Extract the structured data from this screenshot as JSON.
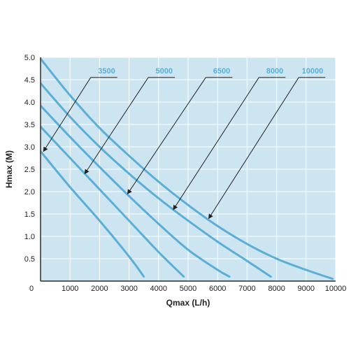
{
  "chart_data": {
    "type": "line",
    "xlabel": "Qmax (L/h)",
    "ylabel": "Hmax (M)",
    "xlim": [
      0,
      10000
    ],
    "ylim": [
      0,
      5.0
    ],
    "x_ticks": [
      "0",
      "1000",
      "2000",
      "3000",
      "4000",
      "5000",
      "6000",
      "7000",
      "8000",
      "9000",
      "10000"
    ],
    "y_ticks": [
      "0.5",
      "1.0",
      "1.5",
      "2.0",
      "2.5",
      "3.0",
      "3.5",
      "4.0",
      "4.5",
      "5.0"
    ],
    "grid": true,
    "background_color": "#cde5f1",
    "line_color": "#5aaed8",
    "arrow_color": "#222222",
    "series": [
      {
        "name": "3500",
        "points": [
          [
            0,
            2.9
          ],
          [
            1000,
            2.1
          ],
          [
            2000,
            1.35
          ],
          [
            3000,
            0.55
          ],
          [
            3500,
            0.1
          ]
        ]
      },
      {
        "name": "5000",
        "points": [
          [
            0,
            3.45
          ],
          [
            1000,
            2.75
          ],
          [
            2000,
            2.05
          ],
          [
            3000,
            1.35
          ],
          [
            4000,
            0.65
          ],
          [
            4850,
            0.1
          ]
        ]
      },
      {
        "name": "6500",
        "points": [
          [
            0,
            3.92
          ],
          [
            1000,
            3.22
          ],
          [
            2000,
            2.55
          ],
          [
            3000,
            1.9
          ],
          [
            4000,
            1.28
          ],
          [
            5000,
            0.7
          ],
          [
            6000,
            0.25
          ],
          [
            6400,
            0.1
          ]
        ]
      },
      {
        "name": "8000",
        "points": [
          [
            0,
            4.42
          ],
          [
            1000,
            3.67
          ],
          [
            2000,
            3.0
          ],
          [
            3000,
            2.4
          ],
          [
            4000,
            1.85
          ],
          [
            5000,
            1.35
          ],
          [
            6000,
            0.88
          ],
          [
            7000,
            0.45
          ],
          [
            7800,
            0.1
          ]
        ]
      },
      {
        "name": "10000",
        "points": [
          [
            0,
            4.97
          ],
          [
            1000,
            4.15
          ],
          [
            2000,
            3.42
          ],
          [
            3000,
            2.8
          ],
          [
            4000,
            2.22
          ],
          [
            5000,
            1.7
          ],
          [
            6000,
            1.23
          ],
          [
            7000,
            0.83
          ],
          [
            8000,
            0.5
          ],
          [
            9000,
            0.25
          ],
          [
            9900,
            0.05
          ]
        ]
      }
    ],
    "annotations": [
      {
        "text": "3500",
        "label_x": 2600,
        "label_y": 4.55,
        "target_x": 100,
        "target_y": 2.9
      },
      {
        "text": "5000",
        "label_x": 4550,
        "label_y": 4.55,
        "target_x": 1500,
        "target_y": 2.4
      },
      {
        "text": "6500",
        "label_x": 6500,
        "label_y": 4.55,
        "target_x": 2950,
        "target_y": 1.95
      },
      {
        "text": "8000",
        "label_x": 8300,
        "label_y": 4.55,
        "target_x": 4500,
        "target_y": 1.6
      },
      {
        "text": "10000",
        "label_x": 9650,
        "label_y": 4.55,
        "target_x": 5700,
        "target_y": 1.4
      }
    ]
  }
}
